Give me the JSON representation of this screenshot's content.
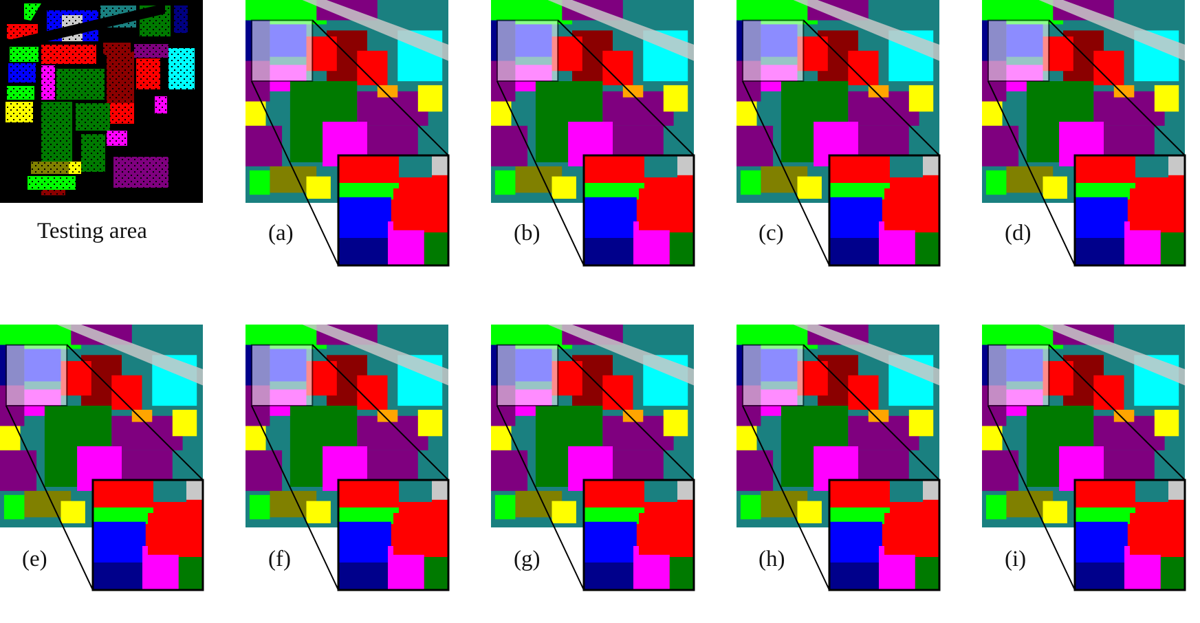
{
  "figure": {
    "reference_caption": "Testing area",
    "panel_captions": [
      "(a)",
      "(b)",
      "(c)",
      "(d)",
      "(e)",
      "(f)",
      "(g)",
      "(h)",
      "(i)"
    ]
  },
  "palette": {
    "background": "#000000",
    "red": "#ff0000",
    "dark_red": "#8b0000",
    "green": "#00ff00",
    "dark_green": "#007a00",
    "blue": "#0000ff",
    "navy": "#00008b",
    "cyan": "#00ffff",
    "teal": "#1a8080",
    "magenta": "#ff00ff",
    "purple": "#7f007f",
    "yellow": "#ffff00",
    "olive": "#808000",
    "orange": "#ffa500",
    "gray": "#c8c8c8"
  }
}
